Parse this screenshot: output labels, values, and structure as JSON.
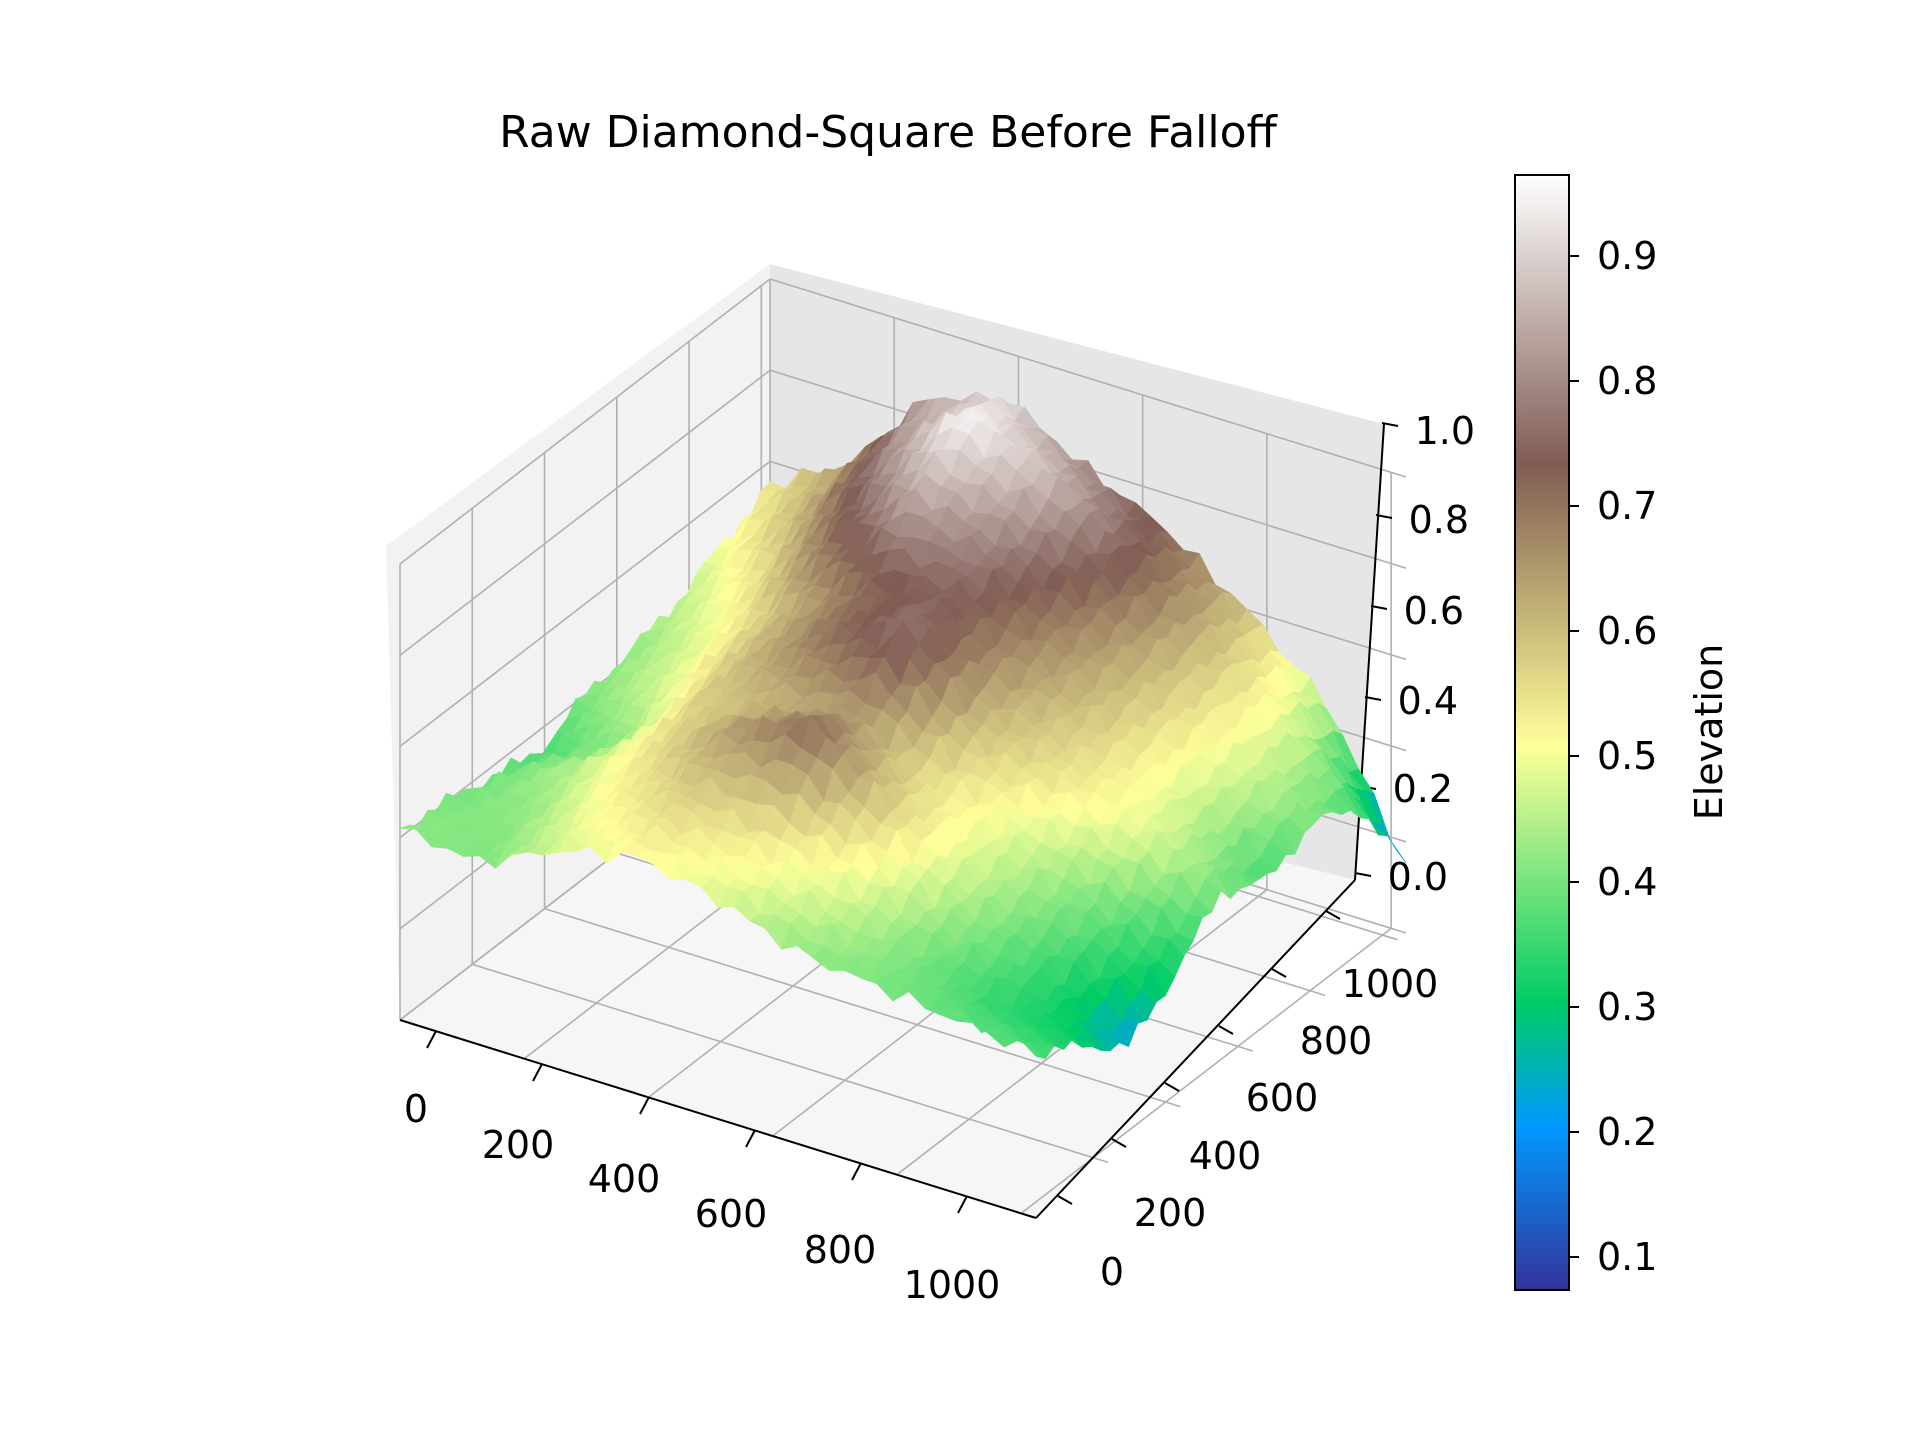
{
  "chart_data": {
    "type": "surface",
    "title": "Raw Diamond-Square Before Falloff",
    "colormap": "terrain",
    "x_axis": {
      "label": "",
      "ticks": [
        0,
        200,
        400,
        600,
        800,
        1000
      ],
      "range": [
        0,
        1024
      ]
    },
    "y_axis": {
      "label": "",
      "ticks": [
        0,
        200,
        400,
        600,
        800,
        1000
      ],
      "range": [
        0,
        1024
      ]
    },
    "z_axis": {
      "label": "",
      "ticks": [
        "0.0",
        "0.2",
        "0.4",
        "0.6",
        "0.8",
        "1.0"
      ],
      "range": [
        0.0,
        1.0
      ]
    },
    "grid": true,
    "colorbar": {
      "label": "Elevation",
      "range": [
        0.07,
        0.96
      ],
      "ticks": [
        "0.1",
        "0.2",
        "0.3",
        "0.4",
        "0.5",
        "0.6",
        "0.7",
        "0.8",
        "0.9"
      ]
    },
    "surface_grid": {
      "x": [
        0,
        128,
        256,
        384,
        512,
        640,
        768,
        896,
        1024
      ],
      "y": [
        0,
        128,
        256,
        384,
        512,
        640,
        768,
        896,
        1024
      ],
      "z_rows_by_y": [
        [
          0.42,
          0.4,
          0.48,
          0.52,
          0.48,
          0.42,
          0.4,
          0.38,
          0.36
        ],
        [
          0.4,
          0.42,
          0.52,
          0.58,
          0.55,
          0.5,
          0.4,
          0.33,
          0.3
        ],
        [
          0.38,
          0.45,
          0.55,
          0.65,
          0.72,
          0.58,
          0.45,
          0.35,
          0.22
        ],
        [
          0.35,
          0.42,
          0.58,
          0.62,
          0.65,
          0.55,
          0.48,
          0.4,
          0.3
        ],
        [
          0.4,
          0.48,
          0.6,
          0.7,
          0.78,
          0.6,
          0.55,
          0.5,
          0.4
        ],
        [
          0.42,
          0.5,
          0.62,
          0.72,
          0.75,
          0.65,
          0.58,
          0.48,
          0.35
        ],
        [
          0.45,
          0.55,
          0.72,
          0.85,
          0.8,
          0.7,
          0.6,
          0.5,
          0.4
        ],
        [
          0.5,
          0.62,
          0.8,
          0.95,
          0.88,
          0.76,
          0.62,
          0.5,
          0.35
        ],
        [
          0.55,
          0.65,
          0.85,
          0.9,
          0.8,
          0.72,
          0.6,
          0.45,
          0.15
        ]
      ]
    }
  }
}
